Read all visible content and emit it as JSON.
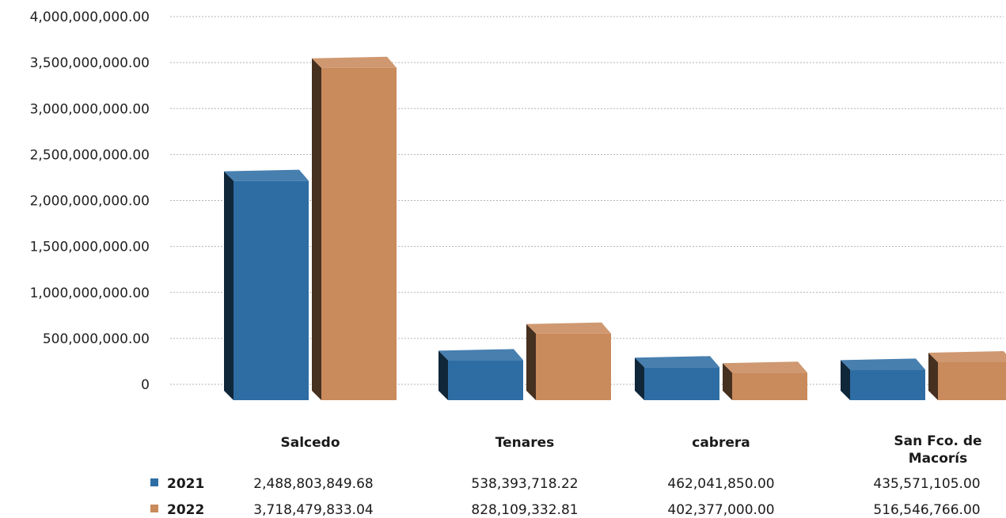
{
  "chart_data": {
    "type": "bar",
    "style": "3d-clustered-column-with-data-table",
    "categories": [
      "Salcedo",
      "Tenares",
      "cabrera",
      "San Fco. de Macorís"
    ],
    "series": [
      {
        "name": "2021",
        "color": "#2e6da4",
        "values": [
          2488803849.68,
          538393718.22,
          462041850.0,
          435571105.0
        ],
        "labels": [
          "2,488,803,849.68",
          "538,393,718.22",
          "462,041,850.00",
          "435,571,105.00"
        ]
      },
      {
        "name": "2022",
        "color": "#c98a5c",
        "values": [
          3718479833.04,
          828109332.81,
          402377000.0,
          516546766.0
        ],
        "labels": [
          "3,718,479,833.04",
          "828,109,332.81",
          "402,377,000.00",
          "516,546,766.00"
        ]
      }
    ],
    "ylim": [
      0,
      4000000000
    ],
    "yticks": [
      0,
      500000000,
      1000000000,
      1500000000,
      2000000000,
      2500000000,
      3000000000,
      3500000000,
      4000000000
    ],
    "ytick_labels": [
      "0",
      "500,000,000.00",
      "1,000,000,000.00",
      "1,500,000,000.00",
      "2,000,000,000.00",
      "2,500,000,000.00",
      "3,000,000,000.00",
      "3,500,000,000.00",
      "4,000,000,000.00"
    ],
    "grid": true,
    "legend": "data-table-below"
  }
}
